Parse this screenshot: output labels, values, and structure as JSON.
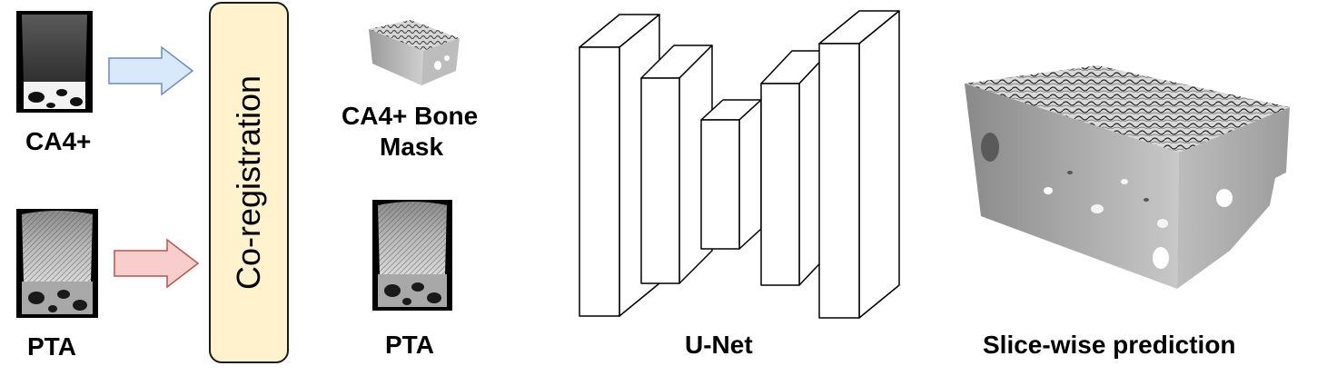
{
  "inputs": {
    "ca4": {
      "label": "CA4+"
    },
    "pta": {
      "label": "PTA"
    }
  },
  "coregistration": {
    "label": "Co-registration"
  },
  "outputs": {
    "mask": {
      "label_line1": "CA4+ Bone",
      "label_line2": "Mask"
    },
    "pta": {
      "label": "PTA"
    }
  },
  "unet": {
    "label": "U-Net"
  },
  "prediction": {
    "label": "Slice-wise prediction"
  },
  "colors": {
    "blue_arrow_fill": "#dae8fc",
    "blue_arrow_stroke": "#6c8ebf",
    "red_arrow_fill": "#f8cecc",
    "red_arrow_stroke": "#b85450",
    "coreg_fill": "#fff2cc",
    "coreg_stroke": "#1a1a1a",
    "unet_fill": "#ffffff",
    "unet_stroke": "#000000"
  }
}
